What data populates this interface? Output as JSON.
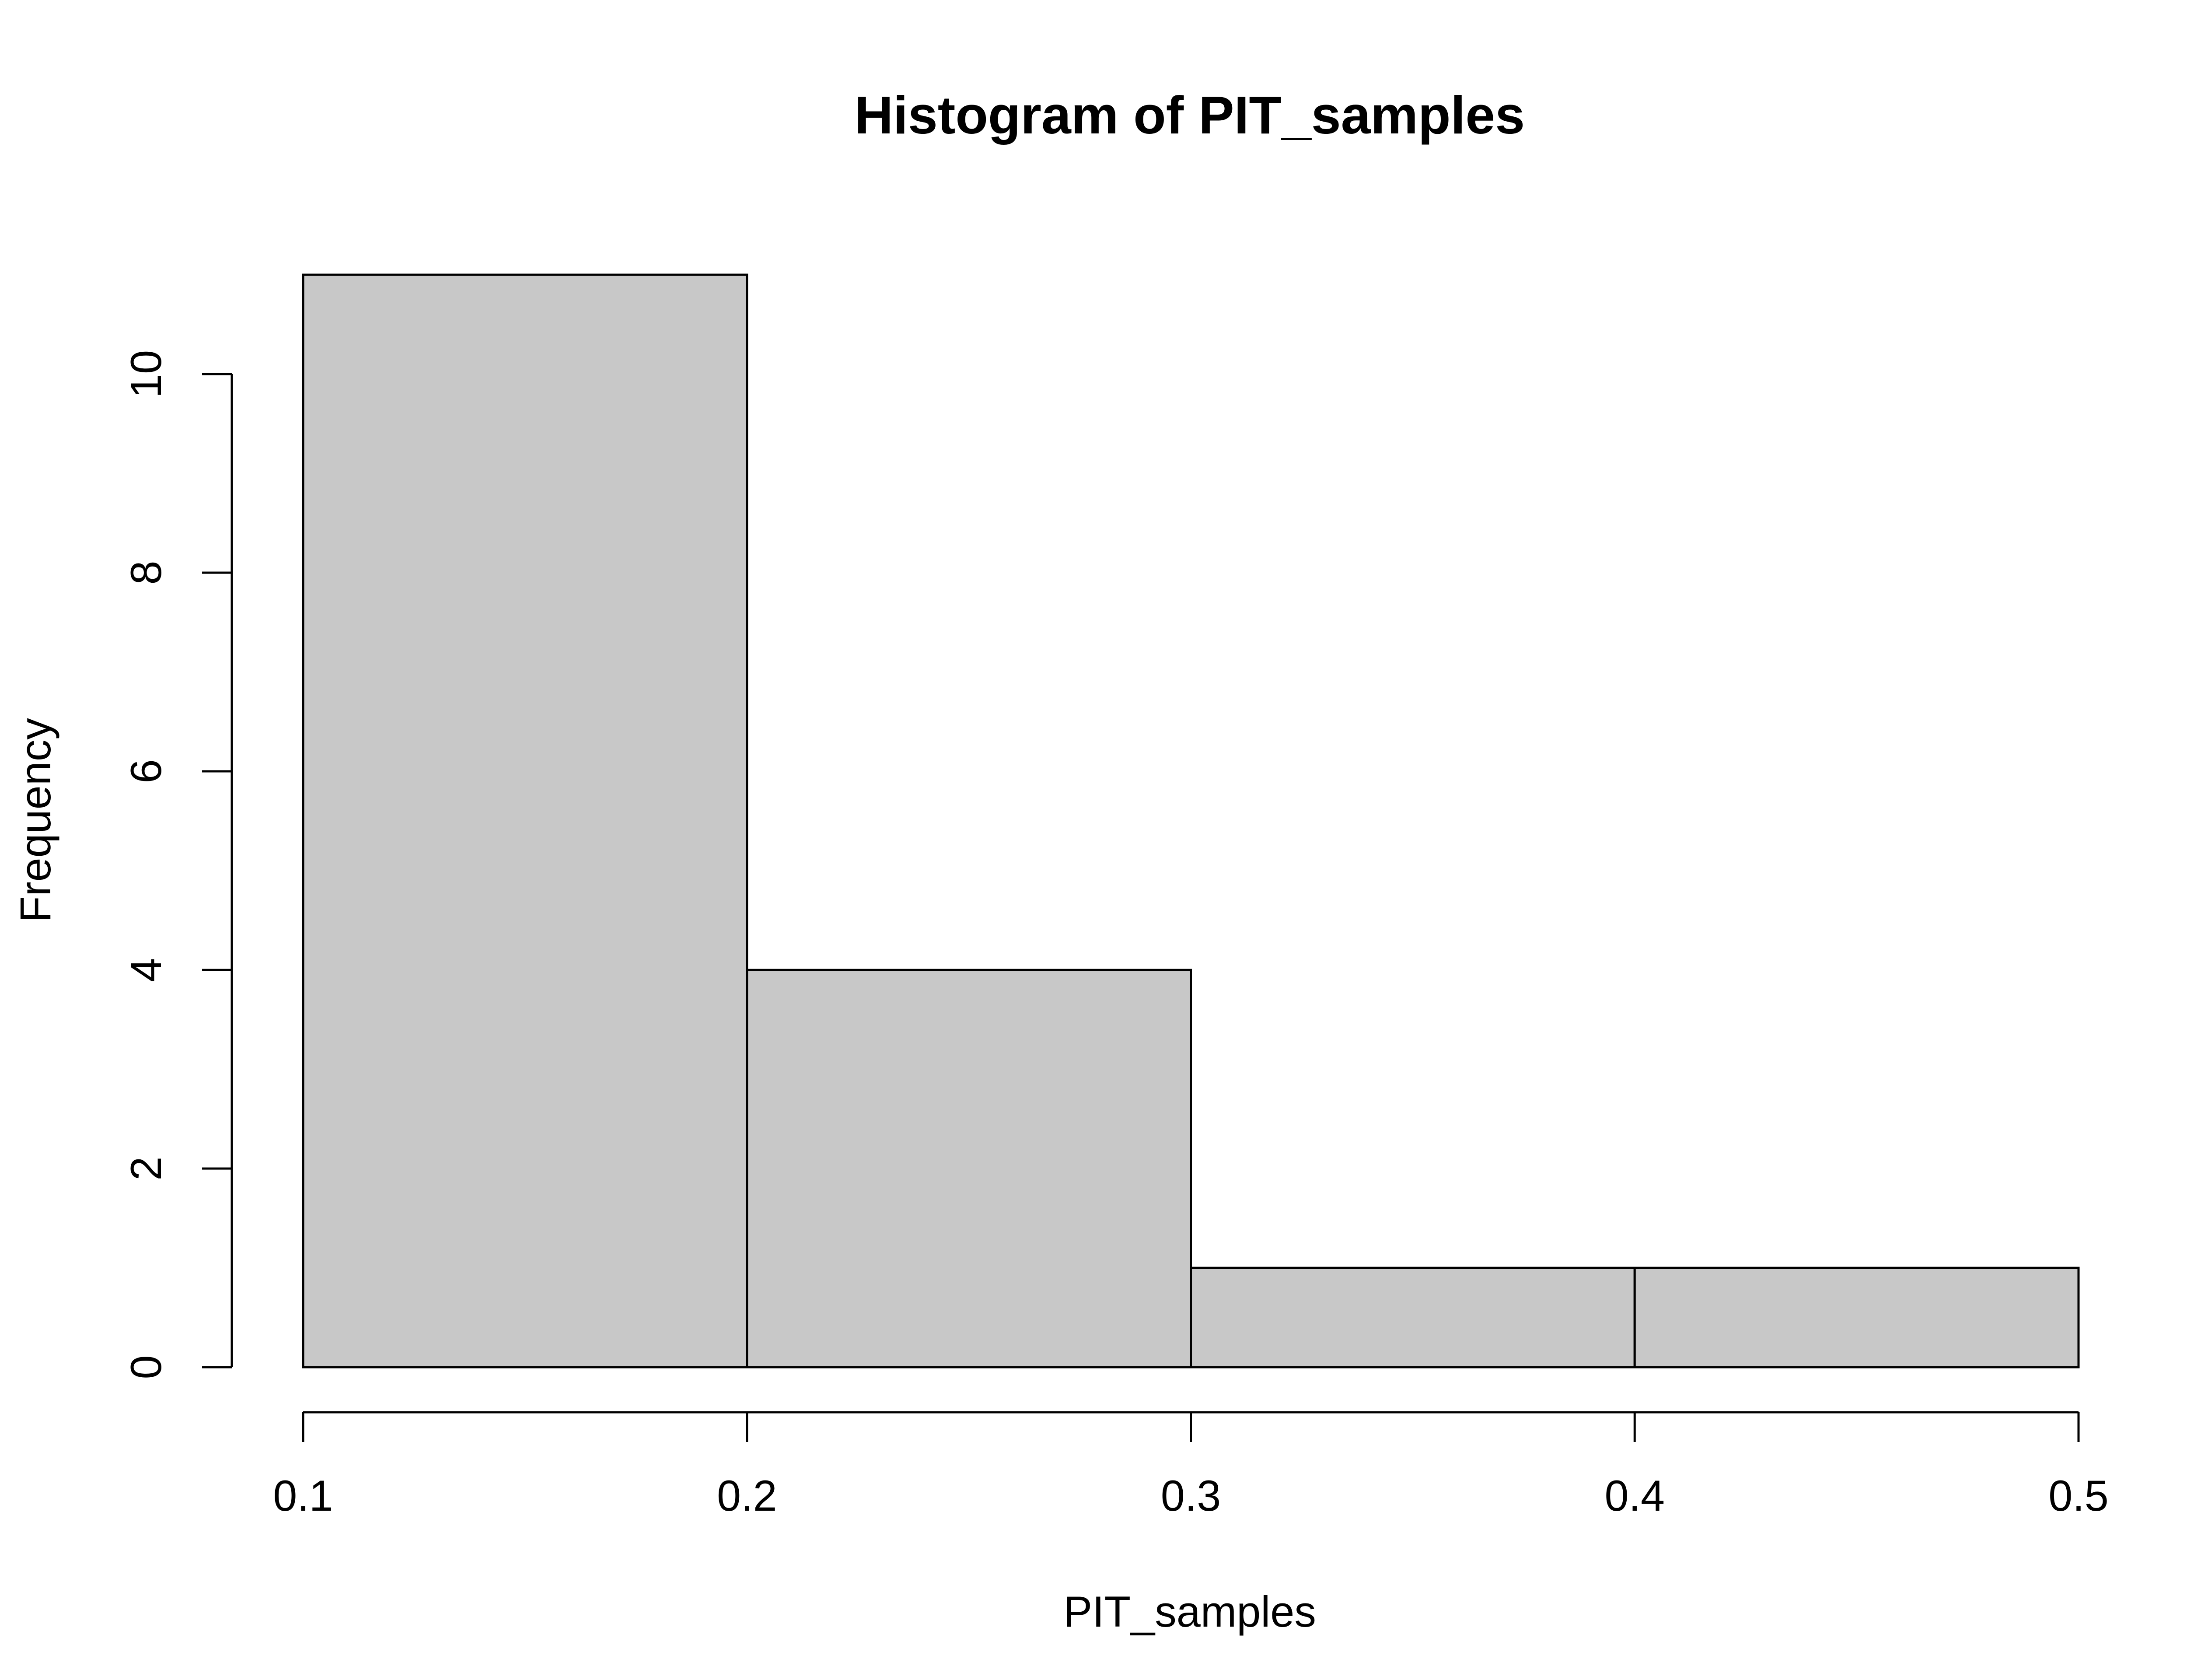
{
  "chart_data": {
    "type": "bar",
    "title": "Histogram of PIT_samples",
    "xlabel": "PIT_samples",
    "ylabel": "Frequency",
    "bins": [
      {
        "x0": 0.1,
        "x1": 0.2,
        "count": 11
      },
      {
        "x0": 0.2,
        "x1": 0.3,
        "count": 4
      },
      {
        "x0": 0.3,
        "x1": 0.4,
        "count": 1
      },
      {
        "x0": 0.4,
        "x1": 0.5,
        "count": 1
      }
    ],
    "xlim": [
      0.1,
      0.5
    ],
    "ylim": [
      0,
      11
    ],
    "x_ticks": [
      0.1,
      0.2,
      0.3,
      0.4,
      0.5
    ],
    "x_tick_labels": [
      "0.1",
      "0.2",
      "0.3",
      "0.4",
      "0.5"
    ],
    "y_ticks": [
      0,
      2,
      4,
      6,
      8,
      10
    ],
    "y_tick_labels": [
      "0",
      "2",
      "4",
      "6",
      "8",
      "10"
    ],
    "grid": false,
    "bar_fill": "#c8c8c8",
    "bar_stroke": "#000000"
  }
}
